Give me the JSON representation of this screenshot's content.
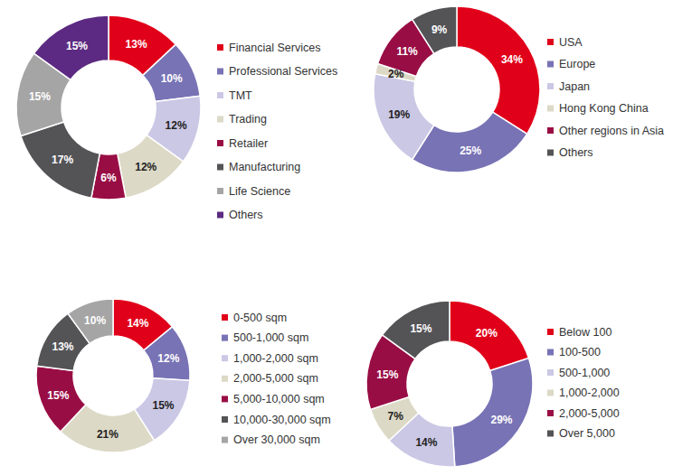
{
  "chart_data": [
    {
      "type": "pie",
      "categories": [
        "Financial Services",
        "Professional Services",
        "TMT",
        "Trading",
        "Retailer",
        "Manufacturing",
        "Life Science",
        "Others"
      ],
      "values": [
        13,
        10,
        12,
        12,
        6,
        17,
        15,
        15
      ],
      "value_labels": [
        "13%",
        "10%",
        "12%",
        "12%",
        "6%",
        "17%",
        "15%",
        "15%"
      ],
      "colors": [
        "#e1001a",
        "#7873b5",
        "#cbc8e5",
        "#dcd9c6",
        "#990d45",
        "#545457",
        "#a5a5a5",
        "#5c2a82"
      ],
      "data_labels": true,
      "legend": "right"
    },
    {
      "type": "pie",
      "categories": [
        "USA",
        "Europe",
        "Japan",
        "Hong Kong China",
        "Other regions in Asia",
        "Others"
      ],
      "values": [
        34,
        25,
        19,
        2,
        11,
        9
      ],
      "value_labels": [
        "34%",
        "25%",
        "19%",
        "2%",
        "11%",
        "9%"
      ],
      "colors": [
        "#e1001a",
        "#7873b5",
        "#cbc8e5",
        "#dcd9c6",
        "#990d45",
        "#545457"
      ],
      "data_labels": true,
      "legend": "right"
    },
    {
      "type": "pie",
      "categories": [
        "0-500 sqm",
        "500-1,000 sqm",
        "1,000-2,000 sqm",
        "2,000-5,000 sqm",
        "5,000-10,000 sqm",
        "10,000-30,000 sqm",
        "Over 30,000 sqm"
      ],
      "values": [
        14,
        12,
        15,
        21,
        15,
        13,
        10
      ],
      "value_labels": [
        "14%",
        "12%",
        "15%",
        "21%",
        "15%",
        "13%",
        "10%"
      ],
      "colors": [
        "#e1001a",
        "#7873b5",
        "#cbc8e5",
        "#dcd9c6",
        "#990d45",
        "#545457",
        "#a5a5a5"
      ],
      "data_labels": true,
      "legend": "right"
    },
    {
      "type": "pie",
      "categories": [
        "Below 100",
        "100-500",
        "500-1,000",
        "1,000-2,000",
        "2,000-5,000",
        "Over 5,000"
      ],
      "values": [
        20,
        29,
        14,
        7,
        15,
        15
      ],
      "value_labels": [
        "20%",
        "29%",
        "14%",
        "7%",
        "15%",
        "15%"
      ],
      "colors": [
        "#e1001a",
        "#7873b5",
        "#cbc8e5",
        "#dcd9c6",
        "#990d45",
        "#545457"
      ],
      "data_labels": true,
      "legend": "right"
    }
  ]
}
